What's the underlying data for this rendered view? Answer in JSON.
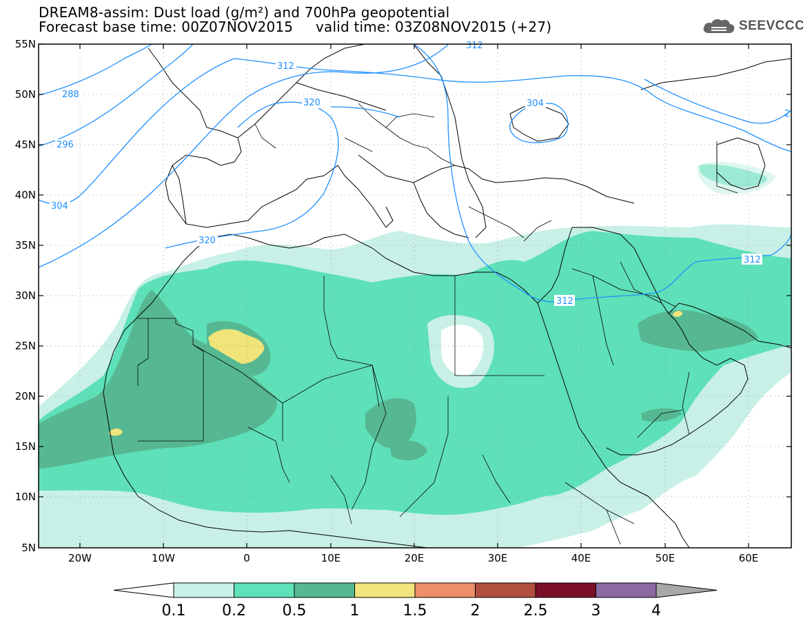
{
  "title": {
    "line1": "DREAM8-assim: Dust load (g/m²) and 700hPa geopotential",
    "line2": "Forecast base time: 00Z07NOV2015     valid time: 03Z08NOV2015 (+27)"
  },
  "logo": {
    "text": "SEEVCCC",
    "icon": "cloud-icon"
  },
  "axes": {
    "lat_labels": [
      "55N",
      "50N",
      "45N",
      "40N",
      "35N",
      "30N",
      "25N",
      "20N",
      "15N",
      "10N",
      "5N"
    ],
    "lon_labels": [
      "20W",
      "10W",
      "0",
      "10E",
      "20E",
      "30E",
      "40E",
      "50E",
      "60E"
    ]
  },
  "contour_labels": [
    "288",
    "296",
    "304",
    "312",
    "320",
    "304",
    "312",
    "320",
    "312",
    "312",
    "2"
  ],
  "colorbar": {
    "labels": [
      "0.1",
      "0.2",
      "0.5",
      "1",
      "1.5",
      "2",
      "2.5",
      "3",
      "4"
    ],
    "colors": [
      "#c8f0e6",
      "#5ee0b8",
      "#56b892",
      "#f0e47a",
      "#eb9068",
      "#b04e40",
      "#7a1028",
      "#8a6aa0"
    ],
    "under_color": "#ffffff",
    "over_color": "#a8a8a8"
  },
  "colors": {
    "contour": "#1e90ff",
    "coast": "#000000",
    "dust_light": "#c8f0e6",
    "dust_mid": "#5ee0b8",
    "dust_dark": "#56b892",
    "dust_yellow": "#f0e47a"
  }
}
